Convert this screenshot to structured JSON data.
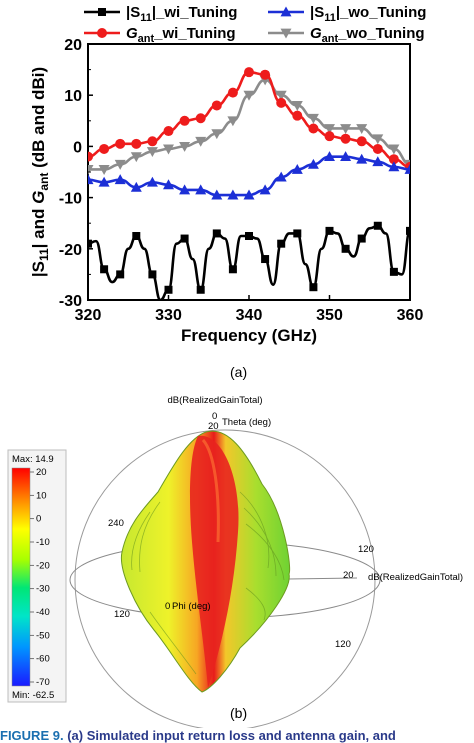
{
  "chart_data": [
    {
      "type": "line",
      "xlabel": "Frequency (GHz)",
      "ylabel": "|S11| and Gant (dB and dBi)",
      "xlim": [
        320,
        360
      ],
      "ylim": [
        -30,
        20
      ],
      "xticks": [
        "320",
        "330",
        "340",
        "350",
        "360"
      ],
      "yticks": [
        "20",
        "10",
        "0",
        "-10",
        "-20",
        "-30"
      ],
      "grid": false,
      "legend_position": "top",
      "series": [
        {
          "name": "|S11|_wi_Tuning",
          "color": "#000000",
          "marker": "square",
          "x": [
            320,
            321,
            322,
            323,
            324,
            325,
            326,
            327,
            328,
            329,
            330,
            331,
            332,
            333,
            334,
            335,
            336,
            337,
            338,
            339,
            340,
            341,
            342,
            343,
            344,
            345,
            346,
            347,
            348,
            349,
            350,
            351,
            352,
            353,
            354,
            355,
            356,
            357,
            358,
            359,
            360
          ],
          "y": [
            -19,
            -18.5,
            -24,
            -26.5,
            -25,
            -20,
            -17.5,
            -20,
            -25,
            -30,
            -28,
            -19,
            -18,
            -22,
            -28,
            -20,
            -17,
            -18,
            -24,
            -17.5,
            -17.5,
            -18,
            -22,
            -27,
            -19,
            -17,
            -17,
            -23,
            -27.5,
            -20,
            -16.5,
            -17,
            -20,
            -21.5,
            -18,
            -16,
            -15.5,
            -17,
            -24.5,
            -25,
            -16.5
          ],
          "marked_x": [
            320,
            322,
            324,
            326,
            328,
            330,
            332,
            334,
            336,
            338,
            340,
            342,
            344,
            346,
            348,
            350,
            352,
            354,
            356,
            358,
            360
          ]
        },
        {
          "name": "|S11|_wo_Tuning",
          "color": "#1c2fd6",
          "marker": "triangle",
          "x": [
            320,
            322,
            324,
            326,
            328,
            330,
            332,
            334,
            336,
            338,
            340,
            342,
            344,
            346,
            348,
            350,
            352,
            354,
            356,
            358,
            360
          ],
          "y": [
            -6.5,
            -7,
            -6.5,
            -8,
            -7,
            -7.5,
            -8.5,
            -8.5,
            -9.5,
            -9.5,
            -9.5,
            -8.5,
            -6,
            -4.5,
            -3.5,
            -2,
            -2,
            -2.5,
            -3,
            -4,
            -4.5
          ]
        },
        {
          "name": "Gant_wi_Tuning",
          "color": "#ee1c1c",
          "marker": "circle",
          "x": [
            320,
            322,
            324,
            326,
            328,
            330,
            332,
            334,
            336,
            338,
            340,
            342,
            344,
            346,
            348,
            350,
            352,
            354,
            356,
            358,
            360
          ],
          "y": [
            -2,
            -0.5,
            0.5,
            0.5,
            1,
            3,
            5,
            5.5,
            8,
            10.5,
            14.5,
            14,
            8.5,
            6,
            3.5,
            2,
            1.5,
            1,
            -0.5,
            -2.5,
            -4
          ]
        },
        {
          "name": "Gant_wo_Tuning",
          "color": "#8c8c8c",
          "marker": "triangle-down",
          "x": [
            320,
            322,
            324,
            326,
            328,
            330,
            332,
            334,
            336,
            338,
            340,
            342,
            344,
            346,
            348,
            350,
            352,
            354,
            356,
            358,
            360
          ],
          "y": [
            -4.5,
            -4.5,
            -3.5,
            -2,
            -1,
            -0.5,
            0,
            1,
            2.5,
            5,
            10,
            13,
            10,
            8,
            5.5,
            3.5,
            3.5,
            3.5,
            1.5,
            -0.5,
            -3.5
          ]
        }
      ]
    },
    {
      "type": "heatmap",
      "title": "dB(RealizedGainTotal)",
      "colorbar": {
        "max_label": "Max: 14.9",
        "min_label": "Min: -62.5",
        "ticks": [
          "20",
          "10",
          "0",
          "-10",
          "-20",
          "-30",
          "-40",
          "-50",
          "-60",
          "-70"
        ]
      },
      "axis_labels": [
        "0",
        "20",
        "Theta (deg)",
        "240",
        "120",
        "0",
        "Phi (deg)",
        "120",
        "20",
        "dB(RealizedGainTotal)",
        "120"
      ]
    }
  ],
  "captions": {
    "a": "(a)",
    "b": "(b)",
    "figure_label": "FIGURE 9.",
    "figure_text": "(a) Simulated input return loss and antenna gain, and"
  }
}
